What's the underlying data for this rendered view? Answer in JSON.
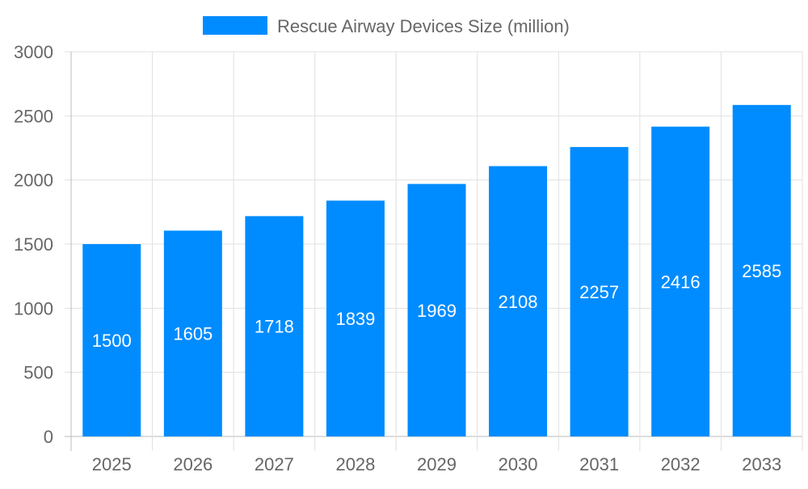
{
  "chart_data": {
    "type": "bar",
    "title": "",
    "xlabel": "",
    "ylabel": "",
    "categories": [
      "2025",
      "2026",
      "2027",
      "2028",
      "2029",
      "2030",
      "2031",
      "2032",
      "2033"
    ],
    "series": [
      {
        "name": "Rescue Airway Devices Size (million)",
        "values": [
          1500,
          1605,
          1718,
          1839,
          1969,
          2108,
          2257,
          2416,
          2585
        ],
        "color": "#008CFF"
      }
    ],
    "ylim": [
      0,
      3000
    ],
    "yticks": [
      0,
      500,
      1000,
      1500,
      2000,
      2500,
      3000
    ],
    "grid": true,
    "legend": "top-center",
    "data_labels": true
  }
}
